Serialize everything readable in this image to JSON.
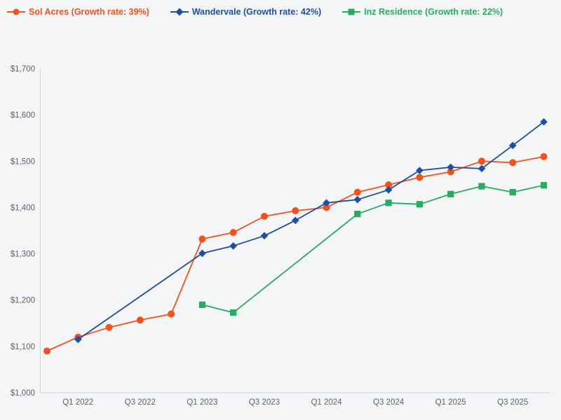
{
  "page": {
    "background_color": "#f4f5f7",
    "axis_color": "#c9d2e2",
    "tick_text_color": "#5d6269"
  },
  "legend": {
    "position": "top-left",
    "items": [
      {
        "label": "Sol Acres (Growth rate: 39%)",
        "color": "#f4511e",
        "marker": "circle"
      },
      {
        "label": "Wandervale (Growth rate: 42%)",
        "color": "#1e4f9f",
        "marker": "diamond"
      },
      {
        "label": "Inz Residence (Growth rate: 22%)",
        "color": "#27ab5f",
        "marker": "square"
      }
    ]
  },
  "chart_data": {
    "type": "line",
    "title": "",
    "xlabel": "",
    "ylabel": "",
    "grid": false,
    "legend_position": "top-left",
    "ylim": [
      1000,
      1700
    ],
    "y_ticks": [
      "$1,000",
      "$1,100",
      "$1,200",
      "$1,300",
      "$1,400",
      "$1,500",
      "$1,600",
      "$1,700"
    ],
    "x": [
      "Q4 2021",
      "Q1 2022",
      "Q2 2022",
      "Q3 2022",
      "Q4 2022",
      "Q1 2023",
      "Q2 2023",
      "Q3 2023",
      "Q4 2023",
      "Q1 2024",
      "Q2 2024",
      "Q3 2024",
      "Q4 2024",
      "Q1 2025",
      "Q2 2025",
      "Q3 2025",
      "Q4 2025"
    ],
    "x_tick_labels": [
      "Q1 2022",
      "Q3 2022",
      "Q1 2023",
      "Q3 2023",
      "Q1 2024",
      "Q3 2024",
      "Q1 2025",
      "Q3 2025"
    ],
    "series": [
      {
        "name": "Sol Acres",
        "legend_label": "Sol Acres (Growth rate: 39%)",
        "growth_rate": "39%",
        "color": "#f4511e",
        "marker": "circle",
        "values": [
          1090,
          1120,
          1141,
          1157,
          1170,
          1332,
          1346,
          1381,
          1393,
          1400,
          1433,
          1449,
          1465,
          1477,
          1500,
          1497,
          1510
        ]
      },
      {
        "name": "Wandervale",
        "legend_label": "Wandervale (Growth rate: 42%)",
        "growth_rate": "42%",
        "color": "#1e4f9f",
        "marker": "diamond",
        "values": [
          null,
          1115,
          null,
          null,
          null,
          1301,
          1317,
          1339,
          1372,
          1410,
          1417,
          1438,
          1480,
          1487,
          1484,
          1534,
          1585
        ]
      },
      {
        "name": "Inz Residence",
        "legend_label": "Inz Residence (Growth rate: 22%)",
        "growth_rate": "22%",
        "color": "#27ab5f",
        "marker": "square",
        "values": [
          null,
          null,
          null,
          null,
          null,
          1190,
          1173,
          null,
          null,
          null,
          1386,
          1410,
          1407,
          1429,
          1446,
          1433,
          1448
        ]
      }
    ]
  }
}
